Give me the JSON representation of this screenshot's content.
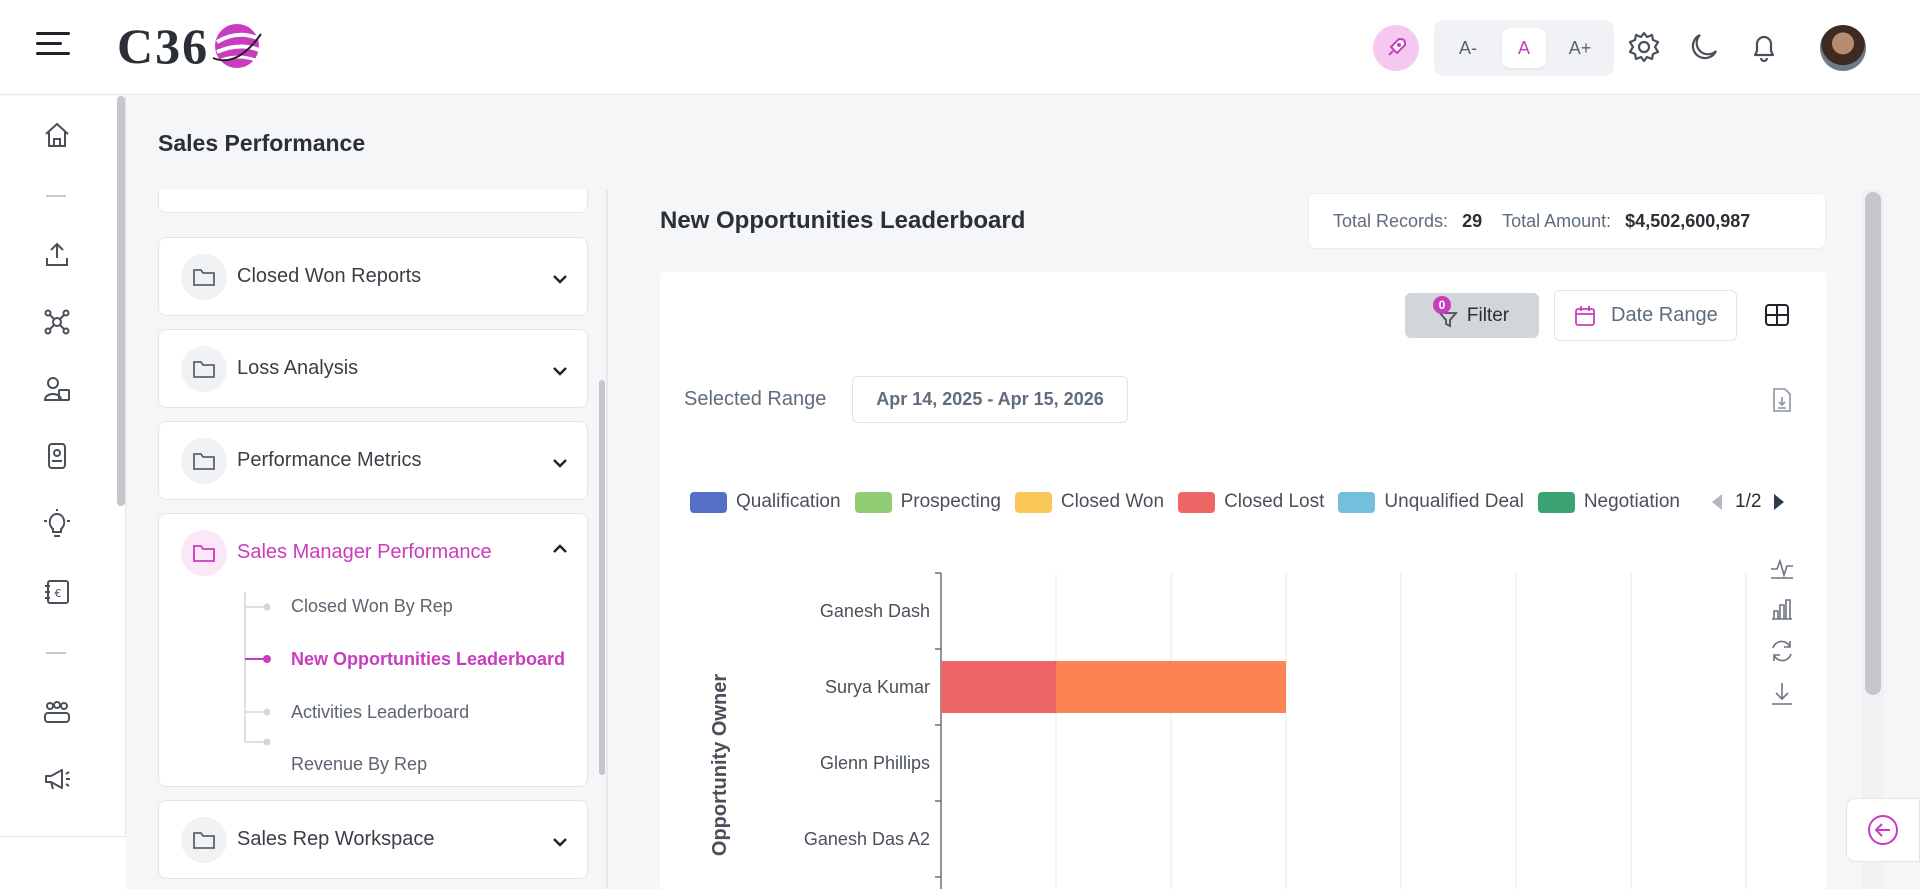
{
  "header": {
    "logo_text": "C36",
    "font_size_buttons": [
      "A-",
      "A",
      "A+"
    ],
    "active_font_size": "A",
    "icons": [
      "menu-icon",
      "rocket-icon",
      "gear-icon",
      "moon-icon",
      "bell-icon"
    ]
  },
  "rail": {
    "icons": [
      "home-icon",
      "upload-icon",
      "network-icon",
      "user-contact-icon",
      "id-badge-icon",
      "lightbulb-icon",
      "ledger-icon",
      "team-icon",
      "megaphone-icon"
    ]
  },
  "page": {
    "title": "Sales Performance"
  },
  "folders": {
    "items": [
      {
        "label": "Closed Won Reports",
        "expanded": false
      },
      {
        "label": "Loss Analysis",
        "expanded": false
      },
      {
        "label": "Performance Metrics",
        "expanded": false
      },
      {
        "label": "Sales Manager Performance",
        "expanded": true
      },
      {
        "label": "Sales Rep Workspace",
        "expanded": false
      }
    ],
    "sub_items": [
      {
        "label": "Closed Won By Rep",
        "active": false
      },
      {
        "label": "New Opportunities Leaderboard",
        "active": true
      },
      {
        "label": "Activities Leaderboard",
        "active": false
      },
      {
        "label": "Revenue By Rep",
        "active": false
      }
    ]
  },
  "report": {
    "title": "New Opportunities Leaderboard",
    "total_records_label": "Total Records:",
    "total_records": "29",
    "total_amount_label": "Total Amount:",
    "total_amount": "$4,502,600,987",
    "filter_label": "Filter",
    "filter_count": "0",
    "date_range_label": "Date Range",
    "selected_range_label": "Selected Range",
    "selected_range_value": "Apr 14, 2025 - Apr 15, 2026",
    "legend_page": "1/2"
  },
  "chart_data": {
    "type": "bar",
    "orientation": "horizontal",
    "stacked": true,
    "ylabel": "Opportunity Owner",
    "categories": [
      "Ganesh Dash",
      "Surya Kumar",
      "Glenn Phillips",
      "Ganesh Das A2"
    ],
    "series": [
      {
        "name": "Qualification",
        "color": "#5470c6",
        "values": [
          0,
          0,
          0,
          0
        ]
      },
      {
        "name": "Prospecting",
        "color": "#91cc75",
        "values": [
          0,
          0,
          0,
          0
        ]
      },
      {
        "name": "Closed Won",
        "color": "#fac858",
        "values": [
          0,
          0,
          0,
          0
        ]
      },
      {
        "name": "Closed Lost",
        "color": "#ee6666",
        "values": [
          0,
          1,
          0,
          0
        ]
      },
      {
        "name": "Unqualified Deal",
        "color": "#73c0de",
        "values": [
          0,
          0,
          0,
          0
        ]
      },
      {
        "name": "Negotiation",
        "color": "#3ba272",
        "values": [
          0,
          0,
          0,
          0
        ]
      },
      {
        "color": "#fc8452",
        "values": [
          0,
          2,
          0,
          0
        ]
      }
    ],
    "x_grid_lines": 7,
    "grid": true,
    "legend_position": "top"
  }
}
